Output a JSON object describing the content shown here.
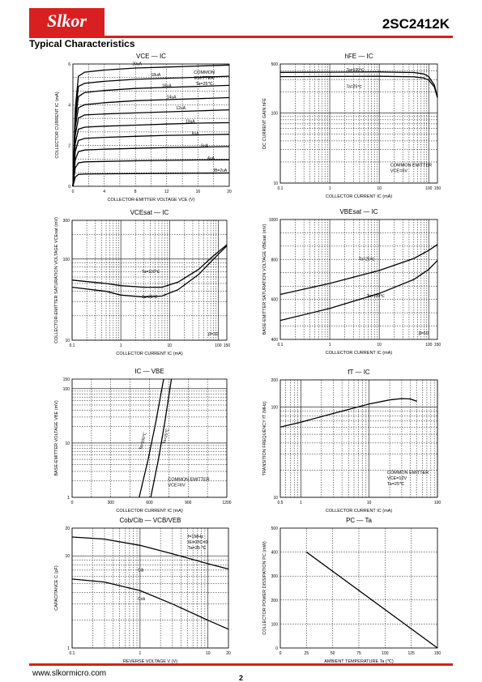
{
  "header": {
    "logo_text": "Slkor",
    "brand_color": "#d7201f",
    "part_number": "2SC2412K",
    "section_title": "Typical Characteristics"
  },
  "footer": {
    "url": "www.slkormicro.com",
    "page": "2"
  },
  "chart_data": [
    {
      "id": "ic_vce",
      "type": "line",
      "title": "VCE — IC",
      "xlabel": "COLLECTOR-EMITTER VOLTAGE  VCE  (V)",
      "ylabel": "COLLECTOR CURRENT   IC   (mA)",
      "xlim": [
        0,
        20
      ],
      "ylim": [
        0,
        6
      ],
      "xticks": [
        "0",
        "4",
        "8",
        "12",
        "16",
        "20"
      ],
      "yticks": [
        "0",
        "2",
        "4",
        "6"
      ],
      "annotation": [
        "COMMON",
        "EMITTER",
        "Ta=25℃"
      ],
      "series": [
        {
          "name": "20uA",
          "x": [
            0,
            0.3,
            0.7,
            1.5,
            4,
            8,
            12,
            16,
            20
          ],
          "y": [
            0,
            3.8,
            5.4,
            5.6,
            5.7,
            5.8,
            5.85,
            5.9,
            5.95
          ]
        },
        {
          "name": "18uA",
          "x": [
            0,
            0.3,
            0.7,
            1.5,
            4,
            8,
            12,
            16,
            20
          ],
          "y": [
            0,
            3.5,
            4.9,
            5.05,
            5.15,
            5.25,
            5.3,
            5.35,
            5.4
          ]
        },
        {
          "name": "16uA",
          "x": [
            0,
            0.3,
            0.7,
            1.5,
            4,
            8,
            12,
            16,
            20
          ],
          "y": [
            0,
            3.2,
            4.4,
            4.6,
            4.7,
            4.8,
            4.85,
            4.9,
            4.95
          ]
        },
        {
          "name": "14uA",
          "x": [
            0,
            0.3,
            0.7,
            1.5,
            4,
            8,
            12,
            16,
            20
          ],
          "y": [
            0,
            2.9,
            3.85,
            4.0,
            4.1,
            4.2,
            4.25,
            4.3,
            4.35
          ]
        },
        {
          "name": "12uA",
          "x": [
            0,
            0.3,
            0.7,
            1.5,
            4,
            8,
            12,
            16,
            20
          ],
          "y": [
            0,
            2.5,
            3.35,
            3.5,
            3.55,
            3.6,
            3.65,
            3.7,
            3.75
          ]
        },
        {
          "name": "10uA",
          "x": [
            0,
            0.3,
            0.7,
            1.5,
            4,
            8,
            12,
            16,
            20
          ],
          "y": [
            0,
            2.1,
            2.8,
            2.9,
            2.95,
            3.0,
            3.05,
            3.1,
            3.12
          ]
        },
        {
          "name": "8uA",
          "x": [
            0,
            0.3,
            0.7,
            1.5,
            4,
            8,
            12,
            16,
            20
          ],
          "y": [
            0,
            1.7,
            2.25,
            2.35,
            2.4,
            2.45,
            2.5,
            2.52,
            2.55
          ]
        },
        {
          "name": "6uA",
          "x": [
            0,
            0.3,
            0.7,
            1.5,
            4,
            8,
            12,
            16,
            20
          ],
          "y": [
            0,
            1.3,
            1.7,
            1.78,
            1.82,
            1.86,
            1.9,
            1.92,
            1.95
          ]
        },
        {
          "name": "4uA",
          "x": [
            0,
            0.3,
            0.7,
            1.5,
            4,
            8,
            12,
            16,
            20
          ],
          "y": [
            0,
            0.9,
            1.15,
            1.2,
            1.22,
            1.25,
            1.27,
            1.29,
            1.3
          ]
        },
        {
          "name": "IB=2uA",
          "x": [
            0,
            0.3,
            0.7,
            1.5,
            4,
            8,
            12,
            16,
            20
          ],
          "y": [
            0,
            0.45,
            0.58,
            0.6,
            0.61,
            0.62,
            0.63,
            0.64,
            0.65
          ]
        }
      ]
    },
    {
      "id": "hfe_ic",
      "type": "line",
      "title": "hFE — IC",
      "xlabel": "COLLECTOR CURRENT  IC   (mA)",
      "ylabel": "DC CURRENT GAIN  hFE",
      "xscale": "log",
      "yscale": "log",
      "xlim": [
        0.1,
        150
      ],
      "ylim": [
        10,
        500
      ],
      "xticks": [
        "0.1",
        "1",
        "10",
        "100",
        "150"
      ],
      "yticks": [
        "10",
        "100",
        "500"
      ],
      "annotation": [
        "COMMON EMITTER",
        "VCE=6V"
      ],
      "series": [
        {
          "name": "Ta=100℃",
          "x": [
            0.1,
            1,
            10,
            50,
            80,
            100,
            130,
            150
          ],
          "y": [
            380,
            382,
            385,
            378,
            360,
            330,
            250,
            170
          ]
        },
        {
          "name": "Ta=25℃",
          "x": [
            0.1,
            1,
            10,
            50,
            80,
            100,
            130,
            150
          ],
          "y": [
            330,
            332,
            334,
            328,
            315,
            295,
            235,
            165
          ]
        }
      ]
    },
    {
      "id": "vcesat_ic",
      "type": "line",
      "title": "VCEsat — IC",
      "xlabel": "COLLECTOR CURRENT   IC   (mA)",
      "ylabel": "COLLECTOR-EMITTER SATURATION VOLTAGE  VCEsat   (mV)",
      "xscale": "log",
      "yscale": "log",
      "xlim": [
        0.1,
        150
      ],
      "ylim": [
        10,
        300
      ],
      "xticks": [
        "0.1",
        "1",
        "10",
        "100",
        "150"
      ],
      "yticks": [
        "10",
        "100",
        "300"
      ],
      "annotation": [
        "β=10"
      ],
      "series": [
        {
          "name": "Ta=100℃",
          "x": [
            0.1,
            0.5,
            1,
            3,
            7,
            15,
            40,
            80,
            150
          ],
          "y": [
            55,
            50,
            47,
            45,
            45,
            52,
            75,
            110,
            150
          ]
        },
        {
          "name": "Ta=25℃",
          "x": [
            0.1,
            0.5,
            1,
            3,
            7,
            15,
            40,
            80,
            150
          ],
          "y": [
            45,
            40,
            36,
            34,
            35,
            42,
            65,
            100,
            145
          ]
        }
      ]
    },
    {
      "id": "vbesat_ic",
      "type": "line",
      "title": "VBEsat — IC",
      "xlabel": "COLLECTOR CURRENT   IC   (mA)",
      "ylabel": "BASE-EMITTER SATURATION VOLTAGE  VBEsat   (mV)",
      "xscale": "log",
      "xlim": [
        0.1,
        150
      ],
      "ylim": [
        400,
        1000
      ],
      "xticks": [
        "0.1",
        "1",
        "10",
        "100",
        "150"
      ],
      "yticks": [
        "400",
        "600",
        "800",
        "1000"
      ],
      "annotation": [
        "β=10"
      ],
      "series": [
        {
          "name": "Ta=25℃",
          "x": [
            0.1,
            1,
            10,
            50,
            100,
            150
          ],
          "y": [
            625,
            680,
            745,
            805,
            845,
            875
          ]
        },
        {
          "name": "Ta=100℃",
          "x": [
            0.1,
            1,
            10,
            50,
            100,
            150
          ],
          "y": [
            495,
            555,
            630,
            700,
            750,
            795
          ]
        }
      ]
    },
    {
      "id": "ic_vbe",
      "type": "line",
      "title": "IC — VBE",
      "xlabel": "COLLECTOR CURRENT   IC   (mA)",
      "ylabel": "BASE-EMITTER VOLTAGE   VBE   (mV)",
      "yscale": "log",
      "xlim": [
        0,
        1200
      ],
      "ylim": [
        1,
        150
      ],
      "xticks": [
        "0",
        "300",
        "600",
        "900",
        "1200"
      ],
      "yticks": [
        "1",
        "10",
        "100",
        "150"
      ],
      "annotation": [
        "COMMON EMITTER",
        "VCE=6V"
      ],
      "series": [
        {
          "name": "Ta=100℃",
          "x": [
            520,
            590,
            650,
            710
          ],
          "y": [
            1,
            5,
            25,
            150
          ]
        },
        {
          "name": "Ta=25℃",
          "x": [
            610,
            670,
            720,
            770
          ],
          "y": [
            1,
            5,
            25,
            150
          ]
        }
      ]
    },
    {
      "id": "ft_ic",
      "type": "line",
      "title": "fT — IC",
      "xlabel": "COLLECTOR CURRENT  IC   (mA)",
      "ylabel": "TRANSITION FREQUENCY   fT   (MHz)",
      "xscale": "log",
      "yscale": "log",
      "xlim": [
        0.5,
        100
      ],
      "ylim": [
        10,
        200
      ],
      "xticks": [
        "0.5",
        "1",
        "10",
        "100"
      ],
      "yticks": [
        "10",
        "100",
        "200"
      ],
      "annotation": [
        "COMMON EMITTER",
        "VCE=12V",
        "Ta=25℃"
      ],
      "series": [
        {
          "name": "fT",
          "x": [
            0.5,
            1,
            3,
            10,
            20,
            30,
            40,
            50
          ],
          "y": [
            60,
            68,
            85,
            108,
            120,
            124,
            123,
            116
          ]
        }
      ]
    },
    {
      "id": "cob_vcb",
      "type": "line",
      "title": "Cob/Cib — VCB/VEB",
      "xlabel": "REVERSE  VOLTAGE  V   (V)",
      "ylabel": "CAPACITANCE   C   (pF)",
      "xscale": "log",
      "yscale": "log",
      "xlim": [
        0.1,
        20
      ],
      "ylim": [
        1,
        20
      ],
      "xticks": [
        "0.1",
        "1",
        "10",
        "20"
      ],
      "yticks": [
        "1",
        "10",
        "20"
      ],
      "annotation": [
        "f=1MHz",
        "IE=0/IC=0",
        "Ta=25 ℃"
      ],
      "series": [
        {
          "name": "Cib",
          "x": [
            0.1,
            0.3,
            1,
            3,
            10,
            20
          ],
          "y": [
            16,
            15.2,
            13,
            10.5,
            8.2,
            7.2
          ]
        },
        {
          "name": "Cob",
          "x": [
            0.1,
            0.3,
            1,
            3,
            10,
            20
          ],
          "y": [
            5.6,
            5.2,
            4.2,
            3.0,
            2.0,
            1.6
          ]
        }
      ]
    },
    {
      "id": "pc_ta",
      "type": "line",
      "title": "PC — Ta",
      "xlabel": "AMBIENT TEMPERATURE    Ta   (℃)",
      "ylabel": "COLLECTOR POWER DISSIPATION  PC  (mW)",
      "xlim": [
        0,
        150
      ],
      "ylim": [
        0,
        500
      ],
      "xticks": [
        "0",
        "25",
        "50",
        "75",
        "100",
        "125",
        "150"
      ],
      "yticks": [
        "0",
        "100",
        "200",
        "300",
        "400",
        "500"
      ],
      "series": [
        {
          "name": "PC",
          "x": [
            25,
            150
          ],
          "y": [
            400,
            0
          ]
        }
      ]
    }
  ]
}
